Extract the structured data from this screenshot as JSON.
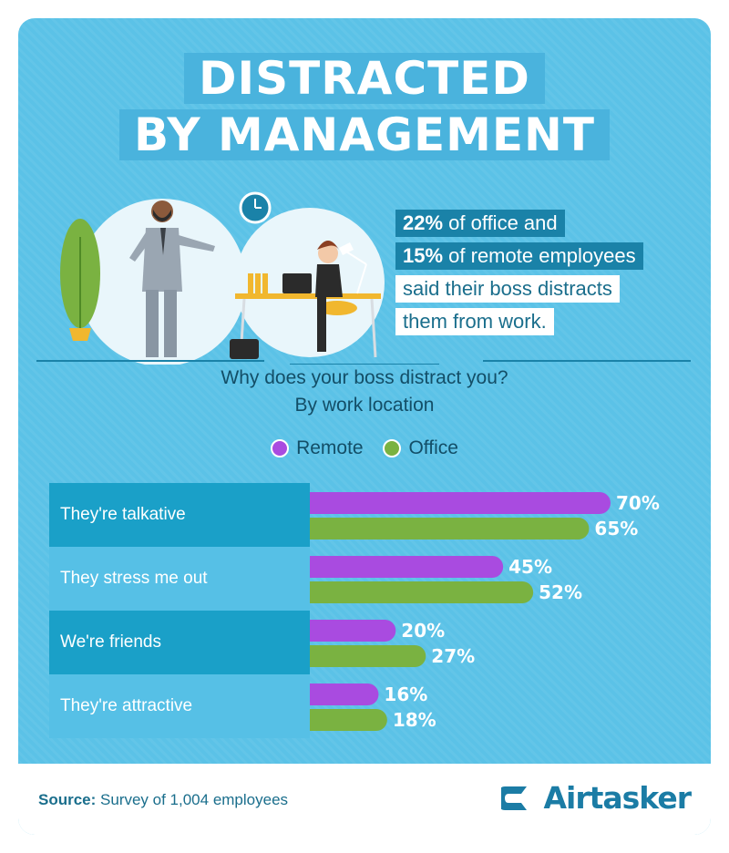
{
  "title": {
    "line1": "DISTRACTED",
    "line2": "BY MANAGEMENT"
  },
  "stat": {
    "line1_bold": "22%",
    "line1_rest": " of office and",
    "line2_bold": "15%",
    "line2_rest": " of remote employees",
    "line3": "said their boss distracts",
    "line4": "them from work."
  },
  "question": {
    "line1": "Why does your boss distract you?",
    "line2": "By work location"
  },
  "colors": {
    "remote": "#a94be0",
    "office": "#7ab241",
    "label_dark": "#1aa0c8",
    "label_light": "#56c0e6"
  },
  "chart_data": {
    "type": "bar",
    "orientation": "horizontal",
    "categories": [
      "They're talkative",
      "They stress me out",
      "We're friends",
      "They're attractive"
    ],
    "series": [
      {
        "name": "Remote",
        "values": [
          70,
          45,
          20,
          16
        ]
      },
      {
        "name": "Office",
        "values": [
          65,
          52,
          27,
          18
        ]
      }
    ],
    "value_suffix": "%",
    "xlim": [
      0,
      70
    ],
    "legend": "top-center",
    "grid": false
  },
  "footer": {
    "source_label": "Source:",
    "source_text": " Survey of 1,004 employees",
    "brand": "Airtasker"
  }
}
